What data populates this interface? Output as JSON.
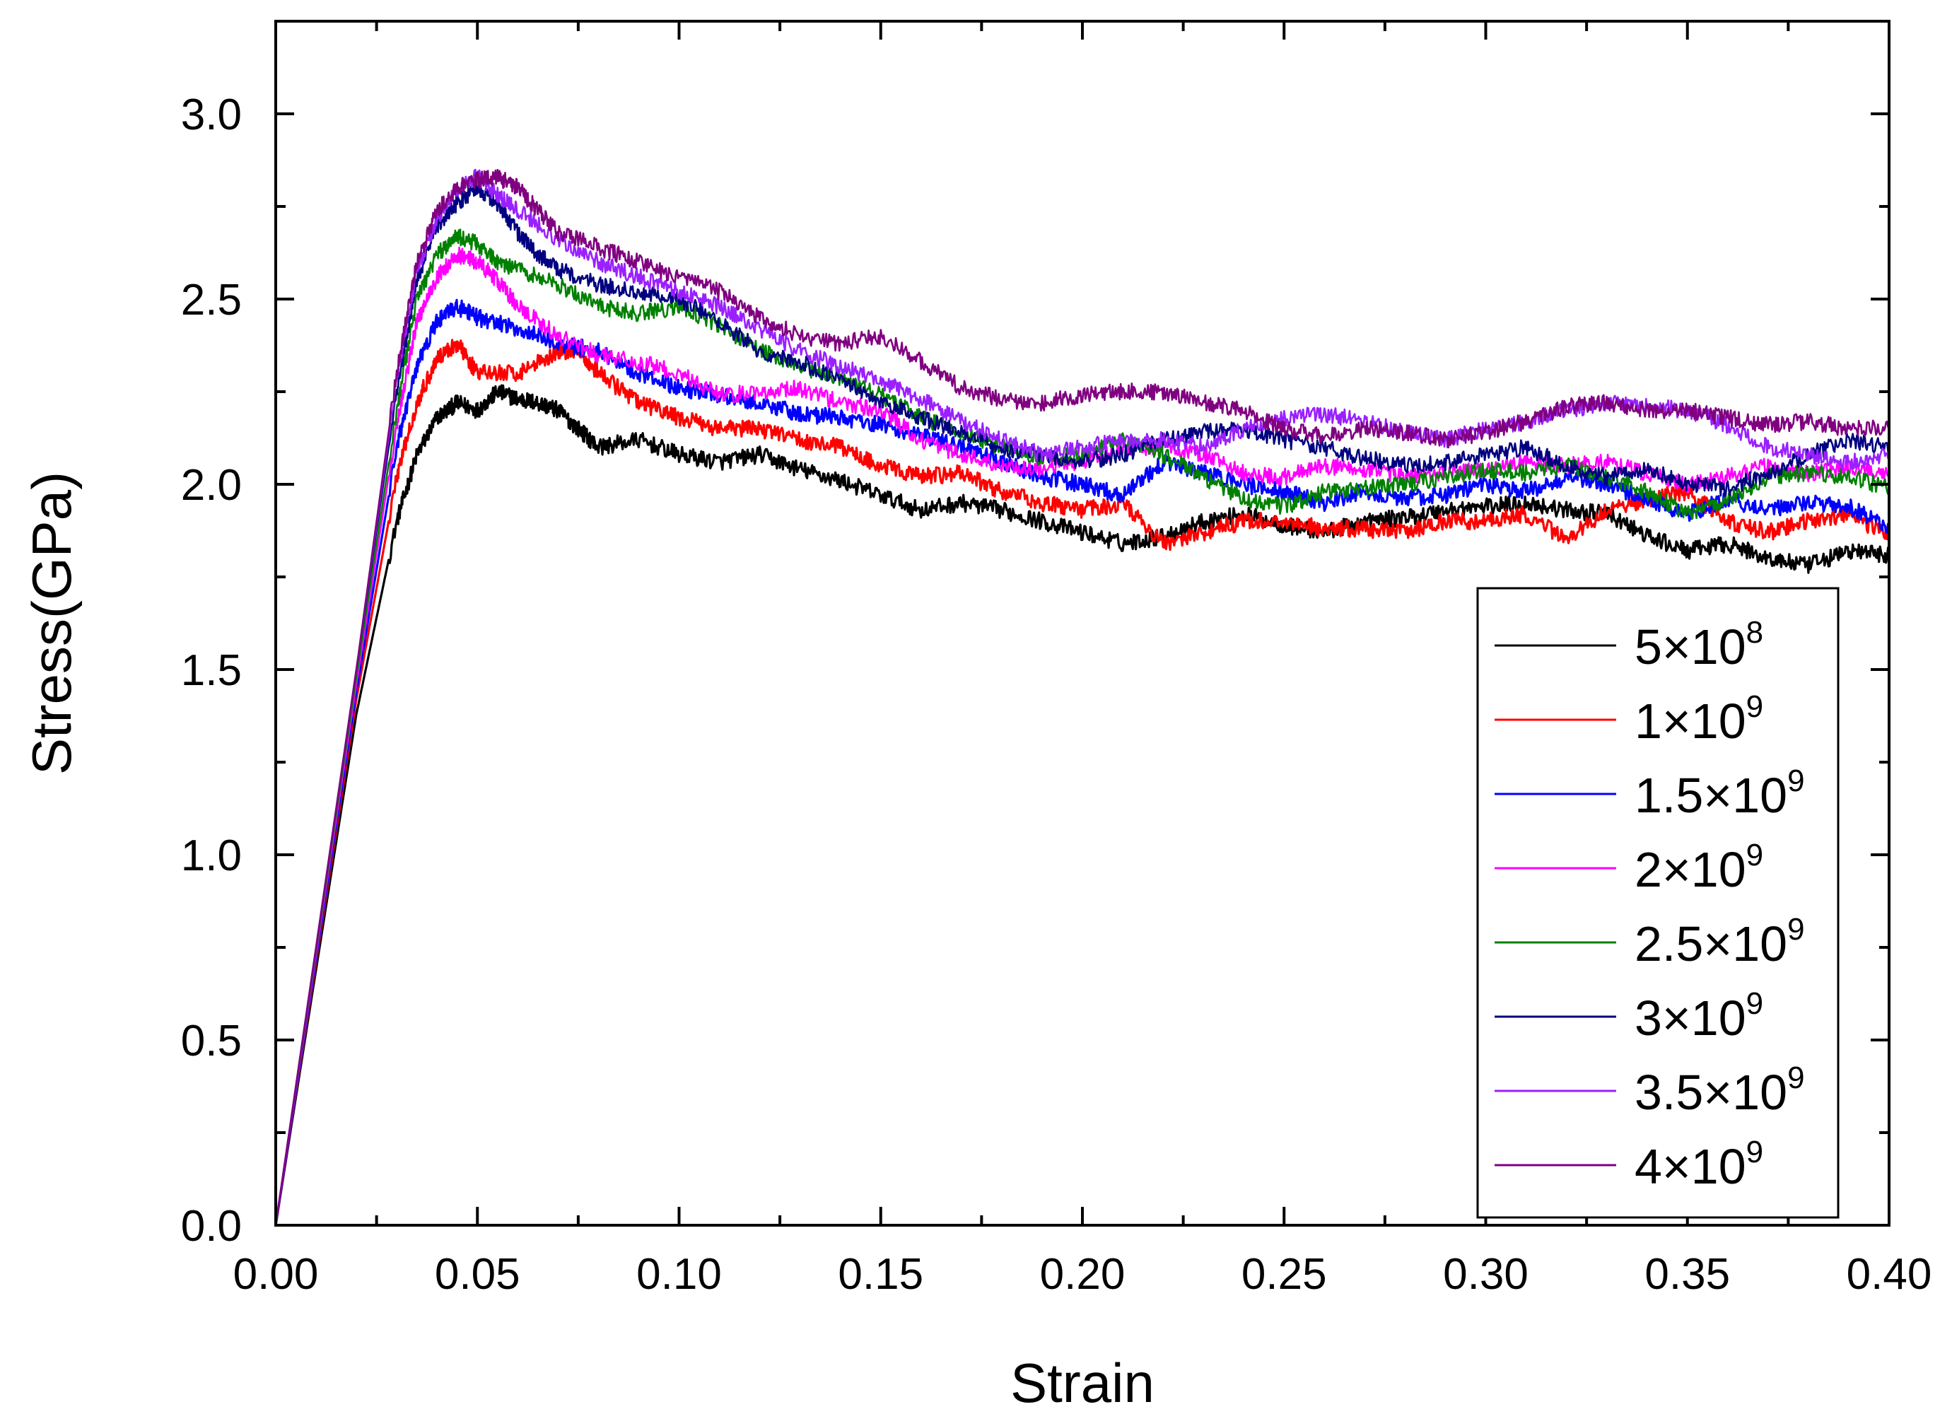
{
  "chart_data": {
    "type": "line",
    "title": "",
    "xlabel": "Strain",
    "ylabel": "Stress(GPa)",
    "xlim": [
      0.0,
      0.4
    ],
    "ylim": [
      0.0,
      3.25
    ],
    "x_ticks": [
      "0.00",
      "0.05",
      "0.10",
      "0.15",
      "0.20",
      "0.25",
      "0.30",
      "0.35",
      "0.40"
    ],
    "y_ticks": [
      "0.0",
      "0.5",
      "1.0",
      "1.5",
      "2.0",
      "2.5",
      "3.0"
    ],
    "grid": false,
    "legend_position": "bottom-right",
    "series": [
      {
        "name": "5×10^8",
        "label_base": "5×10",
        "label_exp": "8",
        "color": "#000000",
        "x": [
          0,
          0.02,
          0.03,
          0.035,
          0.04,
          0.045,
          0.05,
          0.055,
          0.06,
          0.065,
          0.07,
          0.075,
          0.08,
          0.09,
          0.1,
          0.11,
          0.12,
          0.13,
          0.14,
          0.15,
          0.16,
          0.17,
          0.18,
          0.19,
          0.2,
          0.21,
          0.22,
          0.23,
          0.24,
          0.25,
          0.26,
          0.27,
          0.28,
          0.29,
          0.3,
          0.31,
          0.32,
          0.33,
          0.34,
          0.35,
          0.36,
          0.37,
          0.38,
          0.39,
          0.4
        ],
        "values": [
          0,
          1.38,
          1.9,
          2.08,
          2.18,
          2.22,
          2.2,
          2.25,
          2.23,
          2.22,
          2.2,
          2.15,
          2.1,
          2.12,
          2.08,
          2.06,
          2.08,
          2.04,
          2.01,
          1.97,
          1.93,
          1.95,
          1.93,
          1.9,
          1.87,
          1.84,
          1.86,
          1.9,
          1.92,
          1.89,
          1.87,
          1.9,
          1.91,
          1.93,
          1.94,
          1.95,
          1.93,
          1.92,
          1.86,
          1.82,
          1.84,
          1.8,
          1.78,
          1.82,
          1.81
        ]
      },
      {
        "name": "1×10^9",
        "label_base": "1×10",
        "label_exp": "9",
        "color": "#ff0000",
        "x": [
          0,
          0.02,
          0.03,
          0.035,
          0.04,
          0.045,
          0.05,
          0.06,
          0.07,
          0.075,
          0.08,
          0.09,
          0.1,
          0.11,
          0.12,
          0.13,
          0.14,
          0.15,
          0.16,
          0.17,
          0.18,
          0.19,
          0.2,
          0.21,
          0.22,
          0.23,
          0.24,
          0.25,
          0.26,
          0.27,
          0.28,
          0.29,
          0.3,
          0.31,
          0.32,
          0.33,
          0.34,
          0.35,
          0.36,
          0.37,
          0.38,
          0.39,
          0.4
        ],
        "values": [
          0,
          1.42,
          2.02,
          2.22,
          2.34,
          2.38,
          2.3,
          2.3,
          2.36,
          2.36,
          2.3,
          2.22,
          2.18,
          2.15,
          2.15,
          2.12,
          2.1,
          2.05,
          2.02,
          2.03,
          1.98,
          1.95,
          1.93,
          1.95,
          1.84,
          1.87,
          1.9,
          1.9,
          1.88,
          1.88,
          1.87,
          1.9,
          1.9,
          1.92,
          1.85,
          1.93,
          1.96,
          1.98,
          1.9,
          1.87,
          1.9,
          1.92,
          1.86
        ]
      },
      {
        "name": "1.5×10^9",
        "label_base": "1.5×10",
        "label_exp": "9",
        "color": "#0000ff",
        "x": [
          0,
          0.02,
          0.03,
          0.035,
          0.04,
          0.045,
          0.05,
          0.06,
          0.07,
          0.08,
          0.09,
          0.1,
          0.11,
          0.12,
          0.13,
          0.14,
          0.15,
          0.16,
          0.17,
          0.18,
          0.19,
          0.2,
          0.21,
          0.22,
          0.23,
          0.24,
          0.25,
          0.26,
          0.27,
          0.28,
          0.29,
          0.3,
          0.31,
          0.32,
          0.33,
          0.34,
          0.35,
          0.36,
          0.37,
          0.38,
          0.39,
          0.4
        ],
        "values": [
          0,
          1.44,
          2.1,
          2.32,
          2.44,
          2.48,
          2.45,
          2.42,
          2.38,
          2.36,
          2.3,
          2.26,
          2.24,
          2.22,
          2.19,
          2.18,
          2.16,
          2.13,
          2.1,
          2.06,
          2.02,
          2.0,
          1.97,
          2.06,
          2.03,
          2.0,
          1.98,
          1.95,
          1.98,
          1.96,
          1.97,
          2.0,
          1.98,
          2.02,
          2.0,
          1.96,
          1.92,
          1.96,
          1.93,
          1.95,
          1.94,
          1.88
        ]
      },
      {
        "name": "2×10^9",
        "label_base": "2×10",
        "label_exp": "9",
        "color": "#ff00ff",
        "x": [
          0,
          0.02,
          0.03,
          0.035,
          0.04,
          0.045,
          0.05,
          0.055,
          0.06,
          0.07,
          0.08,
          0.09,
          0.1,
          0.11,
          0.12,
          0.13,
          0.14,
          0.15,
          0.16,
          0.17,
          0.18,
          0.19,
          0.2,
          0.21,
          0.22,
          0.23,
          0.24,
          0.25,
          0.26,
          0.27,
          0.28,
          0.29,
          0.3,
          0.31,
          0.32,
          0.33,
          0.34,
          0.35,
          0.36,
          0.37,
          0.38,
          0.39,
          0.4
        ],
        "values": [
          0,
          1.46,
          2.16,
          2.44,
          2.56,
          2.62,
          2.6,
          2.55,
          2.48,
          2.4,
          2.35,
          2.33,
          2.3,
          2.24,
          2.25,
          2.26,
          2.22,
          2.2,
          2.12,
          2.08,
          2.05,
          2.04,
          2.06,
          2.1,
          2.1,
          2.08,
          2.03,
          2.02,
          2.05,
          2.04,
          2.02,
          2.03,
          2.04,
          2.06,
          2.05,
          2.06,
          2.03,
          2.0,
          2.02,
          2.05,
          2.03,
          2.05,
          2.02
        ]
      },
      {
        "name": "2.5×10^9",
        "label_base": "2.5×10",
        "label_exp": "9",
        "color": "#008000",
        "x": [
          0,
          0.02,
          0.03,
          0.035,
          0.04,
          0.045,
          0.05,
          0.055,
          0.06,
          0.07,
          0.08,
          0.09,
          0.1,
          0.11,
          0.12,
          0.13,
          0.14,
          0.15,
          0.16,
          0.17,
          0.18,
          0.19,
          0.2,
          0.21,
          0.22,
          0.23,
          0.24,
          0.25,
          0.26,
          0.27,
          0.28,
          0.29,
          0.3,
          0.31,
          0.32,
          0.33,
          0.34,
          0.35,
          0.36,
          0.37,
          0.38,
          0.39,
          0.4
        ],
        "values": [
          0,
          1.48,
          2.2,
          2.5,
          2.62,
          2.67,
          2.65,
          2.6,
          2.58,
          2.54,
          2.48,
          2.46,
          2.48,
          2.43,
          2.36,
          2.32,
          2.28,
          2.24,
          2.18,
          2.14,
          2.1,
          2.07,
          2.08,
          2.12,
          2.08,
          2.02,
          1.96,
          1.94,
          1.98,
          1.99,
          2.0,
          2.02,
          2.04,
          2.03,
          2.05,
          2.02,
          1.98,
          1.92,
          1.96,
          2.02,
          2.03,
          2.02,
          1.99
        ]
      },
      {
        "name": "3×10^9",
        "label_base": "3×10",
        "label_exp": "9",
        "color": "#000080",
        "x": [
          0,
          0.02,
          0.03,
          0.035,
          0.04,
          0.045,
          0.05,
          0.055,
          0.06,
          0.065,
          0.07,
          0.08,
          0.09,
          0.1,
          0.11,
          0.12,
          0.13,
          0.14,
          0.15,
          0.16,
          0.17,
          0.18,
          0.19,
          0.2,
          0.21,
          0.22,
          0.23,
          0.24,
          0.25,
          0.26,
          0.27,
          0.28,
          0.29,
          0.3,
          0.31,
          0.32,
          0.33,
          0.34,
          0.35,
          0.36,
          0.37,
          0.38,
          0.39,
          0.4
        ],
        "values": [
          0,
          1.5,
          2.25,
          2.55,
          2.7,
          2.76,
          2.8,
          2.76,
          2.68,
          2.62,
          2.58,
          2.54,
          2.52,
          2.5,
          2.44,
          2.36,
          2.33,
          2.28,
          2.22,
          2.18,
          2.14,
          2.1,
          2.08,
          2.06,
          2.08,
          2.12,
          2.14,
          2.15,
          2.12,
          2.1,
          2.07,
          2.05,
          2.06,
          2.08,
          2.1,
          2.05,
          2.02,
          2.04,
          2.0,
          1.99,
          2.03,
          2.08,
          2.12,
          2.1
        ]
      },
      {
        "name": "3.5×10^9",
        "label_base": "3.5×10",
        "label_exp": "9",
        "color": "#9a20ff",
        "x": [
          0,
          0.02,
          0.03,
          0.035,
          0.04,
          0.045,
          0.05,
          0.055,
          0.06,
          0.07,
          0.08,
          0.09,
          0.1,
          0.11,
          0.12,
          0.13,
          0.14,
          0.15,
          0.16,
          0.17,
          0.18,
          0.19,
          0.2,
          0.21,
          0.22,
          0.23,
          0.24,
          0.25,
          0.26,
          0.27,
          0.28,
          0.29,
          0.3,
          0.31,
          0.32,
          0.33,
          0.34,
          0.35,
          0.36,
          0.37,
          0.38,
          0.39,
          0.4
        ],
        "values": [
          0,
          1.5,
          2.28,
          2.58,
          2.72,
          2.8,
          2.83,
          2.78,
          2.74,
          2.66,
          2.6,
          2.56,
          2.52,
          2.48,
          2.42,
          2.36,
          2.32,
          2.28,
          2.23,
          2.17,
          2.12,
          2.08,
          2.1,
          2.12,
          2.12,
          2.1,
          2.15,
          2.18,
          2.19,
          2.17,
          2.14,
          2.12,
          2.15,
          2.17,
          2.2,
          2.22,
          2.21,
          2.2,
          2.16,
          2.1,
          2.08,
          2.06,
          2.08
        ]
      },
      {
        "name": "4×10^9",
        "label_base": "4×10",
        "label_exp": "9",
        "color": "#800080",
        "x": [
          0,
          0.02,
          0.03,
          0.035,
          0.04,
          0.045,
          0.05,
          0.055,
          0.06,
          0.065,
          0.07,
          0.08,
          0.09,
          0.1,
          0.11,
          0.12,
          0.13,
          0.14,
          0.15,
          0.16,
          0.17,
          0.18,
          0.19,
          0.2,
          0.21,
          0.22,
          0.23,
          0.24,
          0.25,
          0.26,
          0.27,
          0.28,
          0.29,
          0.3,
          0.31,
          0.32,
          0.33,
          0.34,
          0.35,
          0.36,
          0.37,
          0.38,
          0.39,
          0.4
        ],
        "values": [
          0,
          1.5,
          2.3,
          2.6,
          2.74,
          2.8,
          2.82,
          2.83,
          2.8,
          2.74,
          2.68,
          2.64,
          2.6,
          2.56,
          2.52,
          2.45,
          2.4,
          2.38,
          2.4,
          2.33,
          2.26,
          2.23,
          2.22,
          2.24,
          2.25,
          2.25,
          2.22,
          2.2,
          2.15,
          2.13,
          2.15,
          2.14,
          2.12,
          2.14,
          2.17,
          2.21,
          2.22,
          2.2,
          2.2,
          2.18,
          2.16,
          2.17,
          2.15,
          2.15
        ]
      }
    ]
  }
}
